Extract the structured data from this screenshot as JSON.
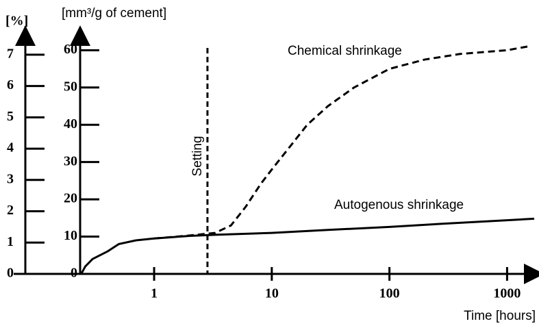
{
  "chart_data": {
    "type": "line",
    "y_label": "[%]",
    "y2_label": "[mm³/g of cement]",
    "x_label": "Time [hours]",
    "log_x": true,
    "xlim": [
      0.235,
      1700
    ],
    "xticks": [
      1,
      10,
      100,
      1000
    ],
    "ylim": [
      0,
      7.5
    ],
    "yticks": [
      0,
      1,
      2,
      3,
      4,
      5,
      6,
      7
    ],
    "y2lim": [
      0,
      63
    ],
    "y2ticks": [
      0,
      10,
      20,
      30,
      40,
      50,
      60
    ],
    "series": [
      {
        "name": "Chemical shrinkage",
        "color": "#000000",
        "dashed": true,
        "axis": "y2",
        "x": [
          1,
          2,
          3.3,
          4.5,
          6,
          8,
          10,
          15,
          20,
          30,
          50,
          100,
          200,
          400,
          1000,
          1500
        ],
        "values": [
          9.5,
          10.3,
          11,
          13,
          18,
          24,
          28,
          35,
          40,
          45,
          50,
          55,
          57.5,
          59,
          60,
          61
        ]
      },
      {
        "name": "Autogenous shrinkage",
        "color": "#000000",
        "dashed": false,
        "axis": "y2",
        "x": [
          0.24,
          0.26,
          0.3,
          0.4,
          0.5,
          0.7,
          1,
          2,
          3.3,
          10,
          30,
          100,
          300,
          1000,
          1700
        ],
        "values": [
          0,
          2,
          4,
          6,
          8,
          9,
          9.5,
          10.2,
          10.5,
          11,
          11.8,
          12.6,
          13.5,
          14.4,
          14.8
        ]
      }
    ],
    "annotations": [
      {
        "text": "Setting",
        "x": 2.84
      }
    ]
  }
}
